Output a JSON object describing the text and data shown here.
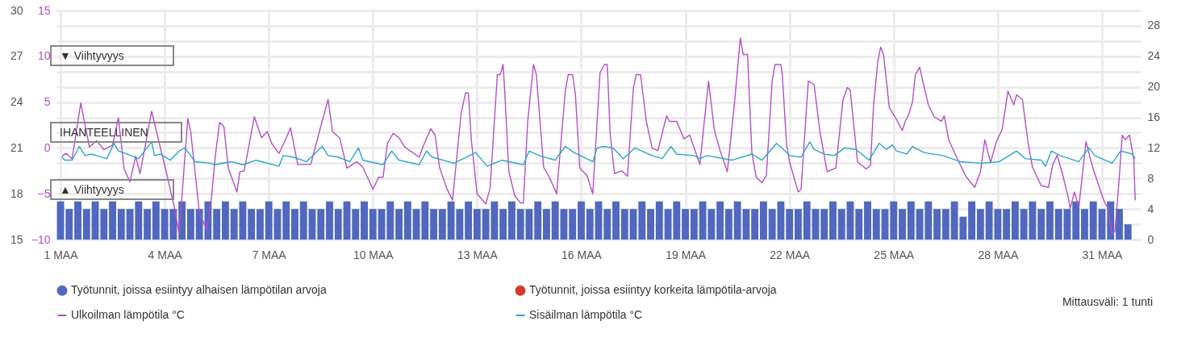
{
  "chart_data": {
    "type": "line",
    "x": [
      "--03-01T00:00",
      "--03-01T06:00",
      "--03-01T12:00",
      "--03-01T18:00",
      "--03-02T00:00",
      "--03-02T06:00",
      "--03-02T12:00",
      "--03-02T18:00",
      "--03-03T00:00",
      "--03-03T06:00",
      "--03-03T12:00",
      "--03-03T18:00",
      "--03-04T00:00",
      "--03-04T06:00",
      "--03-04T12:00",
      "--03-04T18:00",
      "--03-05T00:00",
      "--03-05T06:00",
      "--03-05T12:00",
      "--03-05T18:00",
      "--03-06T00:00",
      "--03-06T06:00",
      "--03-06T12:00",
      "--03-06T18:00",
      "--03-07T00:00",
      "--03-07T06:00",
      "--03-07T12:00",
      "--03-07T18:00",
      "--03-08T00:00",
      "--03-08T06:00",
      "--03-08T12:00",
      "--03-08T18:00",
      "--03-09T00:00",
      "--03-09T06:00",
      "--03-09T12:00",
      "--03-09T18:00",
      "--03-10T00:00",
      "--03-10T06:00",
      "--03-10T12:00",
      "--03-10T18:00",
      "--03-11T00:00",
      "--03-11T06:00",
      "--03-11T12:00",
      "--03-11T18:00",
      "--03-12T00:00",
      "--03-12T06:00",
      "--03-12T12:00",
      "--03-12T18:00",
      "--03-13T00:00",
      "--03-13T06:00",
      "--03-13T12:00",
      "--03-13T18:00",
      "--03-14T00:00",
      "--03-14T06:00",
      "--03-14T12:00",
      "--03-14T18:00",
      "--03-15T00:00",
      "--03-15T06:00",
      "--03-15T12:00",
      "--03-15T18:00",
      "--03-16T00:00",
      "--03-16T06:00",
      "--03-16T12:00",
      "--03-16T18:00",
      "--03-17T00:00",
      "--03-17T06:00",
      "--03-17T12:00",
      "--03-17T18:00",
      "--03-18T00:00",
      "--03-18T06:00",
      "--03-18T12:00",
      "--03-18T18:00",
      "--03-19T00:00",
      "--03-19T06:00",
      "--03-19T12:00",
      "--03-19T18:00",
      "--03-20T00:00",
      "--03-20T06:00",
      "--03-20T12:00",
      "--03-20T18:00",
      "--03-21T00:00",
      "--03-21T06:00",
      "--03-21T12:00",
      "--03-21T18:00",
      "--03-22T00:00",
      "--03-22T06:00",
      "--03-22T12:00",
      "--03-22T18:00",
      "--03-23T00:00",
      "--03-23T06:00",
      "--03-23T12:00",
      "--03-23T18:00",
      "--03-24T00:00",
      "--03-24T06:00",
      "--03-24T12:00",
      "--03-24T18:00",
      "--03-25T00:00",
      "--03-25T06:00",
      "--03-25T12:00",
      "--03-25T18:00",
      "--03-26T00:00",
      "--03-26T06:00",
      "--03-26T12:00",
      "--03-26T18:00",
      "--03-27T00:00",
      "--03-27T06:00",
      "--03-27T12:00",
      "--03-27T18:00",
      "--03-28T00:00",
      "--03-28T06:00",
      "--03-28T12:00",
      "--03-28T18:00",
      "--03-29T00:00",
      "--03-29T06:00",
      "--03-29T12:00",
      "--03-29T18:00",
      "--03-30T00:00",
      "--03-30T06:00",
      "--03-30T12:00",
      "--03-30T18:00",
      "--03-31T00:00",
      "--03-31T06:00",
      "--03-31T12:00",
      "--03-31T18:00"
    ],
    "series": [
      {
        "name": "Työtunnit, joissa esiintyy alhaisen lämpötilan arvoja",
        "type": "bar",
        "axis": "y3",
        "color": "#5068be",
        "values": [
          5,
          4,
          5,
          4,
          5,
          4,
          5,
          4,
          4,
          5,
          4,
          5,
          4,
          4,
          5,
          4,
          4,
          5,
          4,
          5,
          4,
          5,
          4,
          4,
          5,
          4,
          5,
          4,
          5,
          4,
          4,
          5,
          4,
          5,
          4,
          5,
          4,
          4,
          5,
          4,
          5,
          4,
          5,
          4,
          4,
          5,
          4,
          5,
          4,
          4,
          5,
          4,
          5,
          4,
          4,
          5,
          4,
          5,
          4,
          4,
          5,
          4,
          5,
          4,
          5,
          4,
          4,
          5,
          4,
          5,
          4,
          5,
          4,
          4,
          5,
          4,
          5,
          4,
          5,
          4,
          4,
          5,
          4,
          5,
          4,
          4,
          5,
          4,
          4,
          5,
          4,
          5,
          4,
          5,
          4,
          4,
          5,
          4,
          5,
          4,
          5,
          4,
          4,
          5,
          3,
          5,
          4,
          5,
          4,
          4,
          5,
          4,
          5,
          4,
          5,
          4,
          4,
          5,
          4,
          5,
          4,
          5,
          4,
          2
        ]
      },
      {
        "name": "Työtunnit, joissa esiintyy korkeita lämpötila-arvoja",
        "type": "bar",
        "axis": "y3",
        "color": "#d7392c",
        "values": [
          null,
          null,
          null,
          null,
          null,
          null,
          null,
          null,
          null,
          null,
          null,
          null,
          null,
          null,
          null,
          null,
          null,
          null,
          null,
          null,
          null,
          null,
          null,
          null,
          null,
          null,
          null,
          null,
          null,
          null,
          null,
          null,
          null,
          null,
          null,
          null,
          null,
          null,
          null,
          null,
          null,
          null,
          null,
          null,
          null,
          null,
          null,
          null,
          null,
          null,
          null,
          null,
          null,
          null,
          null,
          null,
          null,
          null,
          null,
          null,
          null,
          null,
          null,
          null,
          null,
          null,
          null,
          null,
          null,
          null,
          null,
          null,
          null,
          null,
          null,
          null,
          null,
          null,
          null,
          null,
          null,
          null,
          null,
          null,
          null,
          null,
          null,
          null,
          null,
          null,
          null,
          null,
          null,
          null,
          null,
          null,
          null,
          null,
          null,
          null,
          null,
          null,
          null,
          null,
          null,
          null,
          null,
          null,
          null,
          null,
          null,
          null,
          null,
          null,
          null,
          null,
          null,
          null,
          null,
          null,
          null,
          null,
          null,
          null
        ]
      },
      {
        "name": "Ulkoilman lämpötila °C",
        "axis": "y2",
        "color": "#b44fc8",
        "x": [
          "--03-01T01:00",
          "--03-01T04:00",
          "--03-01T08:00",
          "--03-01T14:00",
          "--03-01T20:00",
          "--03-02T01:00",
          "--03-02T06:00",
          "--03-02T12:00",
          "--03-02T16:00",
          "--03-02T20:00",
          "--03-03T00:00",
          "--03-03T04:00",
          "--03-03T07:00",
          "--03-03T15:00",
          "--03-03T17:00",
          "--03-04T02:00",
          "--03-04T07:00",
          "--03-04T10:00",
          "--03-04T16:00",
          "--03-04T18:00",
          "--03-05T00:00",
          "--03-05T05:00",
          "--03-05T08:00",
          "--03-05T11:00",
          "--03-05T14:00",
          "--03-05T17:00",
          "--03-05T20:00",
          "--03-06T02:00",
          "--03-06T04:00",
          "--03-06T07:00",
          "--03-06T14:00",
          "--03-06T19:00",
          "--03-06T23:00",
          "--03-07T02:00",
          "--03-07T07:00",
          "--03-07T11:00",
          "--03-07T15:00",
          "--03-07T20:00",
          "--03-08T05:00",
          "--03-08T11:00",
          "--03-08T17:00",
          "--03-08T20:00",
          "--03-09T01:00",
          "--03-09T06:00",
          "--03-09T13:00",
          "--03-09T17:00",
          "--03-10T00:00",
          "--03-10T04:00",
          "--03-10T07:00",
          "--03-10T10:00",
          "--03-10T14:00",
          "--03-10T18:00",
          "--03-10T22:00",
          "--03-11T08:00",
          "--03-11T11:00",
          "--03-11T16:00",
          "--03-11T19:00",
          "--03-11T22:00",
          "--03-12T03:00",
          "--03-12T07:00",
          "--03-12T13:00",
          "--03-12T16:00",
          "--03-12T18:00",
          "--03-12T20:00",
          "--03-13T00:00",
          "--03-13T06:00",
          "--03-13T09:00",
          "--03-13T14:00",
          "--03-13T16:00",
          "--03-13T18:00",
          "--03-13T19:00",
          "--03-13T22:00",
          "--03-14T02:00",
          "--03-14T06:00",
          "--03-14T08:00",
          "--03-14T11:00",
          "--03-14T15:00",
          "--03-14T17:00",
          "--03-14T22:00",
          "--03-15T02:00",
          "--03-15T07:00",
          "--03-15T13:00",
          "--03-15T15:00",
          "--03-15T18:00",
          "--03-15T20:00",
          "--03-15T23:00",
          "--03-16T04:00",
          "--03-16T08:00",
          "--03-16T13:00",
          "--03-16T16:00",
          "--03-16T18:00",
          "--03-16T20:00",
          "--03-16T23:00",
          "--03-17T04:00",
          "--03-17T08:00",
          "--03-17T12:00",
          "--03-17T14:00",
          "--03-17T17:00",
          "--03-17T21:00",
          "--03-18T01:00",
          "--03-18T05:00",
          "--03-18T11:00",
          "--03-18T13:00",
          "--03-18T18:00",
          "--03-18T23:00",
          "--03-19T03:00",
          "--03-19T10:00",
          "--03-19T16:00",
          "--03-19T20:00",
          "--03-20T00:00",
          "--03-20T05:00",
          "--03-20T10:00",
          "--03-20T14:00",
          "--03-20T16:00",
          "--03-20T19:00",
          "--03-20T22:00",
          "--03-21T01:00",
          "--03-21T05:00",
          "--03-21T08:00",
          "--03-21T12:00",
          "--03-21T14:00",
          "--03-21T18:00",
          "--03-21T19:00",
          "--03-21T22:00",
          "--03-22T00:00",
          "--03-22T06:00",
          "--03-22T08:00",
          "--03-22T13:00",
          "--03-22T17:00",
          "--03-22T21:00",
          "--03-23T02:00",
          "--03-23T08:00",
          "--03-23T13:00",
          "--03-23T16:00",
          "--03-23T18:00",
          "--03-23T23:00",
          "--03-24T05:00",
          "--03-24T08:00",
          "--03-24T10:00",
          "--03-24T13:00",
          "--03-24T15:00",
          "--03-24T17:00",
          "--03-24T21:00",
          "--03-25T02:00",
          "--03-25T06:00",
          "--03-25T08:00",
          "--03-25T10:00",
          "--03-25T13:00",
          "--03-25T15:00",
          "--03-25T18:00",
          "--03-25T21:00",
          "--03-26T00:00",
          "--03-26T04:00",
          "--03-26T09:00",
          "--03-26T11:00",
          "--03-26T14:00",
          "--03-26T21:00",
          "--03-27T02:00",
          "--03-27T08:00",
          "--03-27T12:00",
          "--03-27T15:00",
          "--03-27T19:00",
          "--03-27T23:00",
          "--03-28T03:00",
          "--03-28T07:00",
          "--03-28T11:00",
          "--03-28T13:00",
          "--03-28T17:00",
          "--03-28T21:00",
          "--03-29T00:00",
          "--03-29T06:00",
          "--03-29T11:00",
          "--03-29T14:00",
          "--03-29T17:00",
          "--03-29T21:00",
          "--03-30T01:00",
          "--03-30T02:00",
          "--03-30T05:00",
          "--03-30T08:00",
          "--03-30T13:00",
          "--03-30T16:00",
          "--03-30T18:00",
          "--03-30T23:00",
          "--03-31T02:00",
          "--03-31T04:00",
          "--03-31T07:00",
          "--03-31T09:00",
          "--03-31T12:00",
          "--03-31T14:00",
          "--03-31T16:00",
          "--03-31T19:00",
          "--03-31T22:00",
          "--03-31T23:00"
        ],
        "values": [
          -0.9,
          -0.6,
          -1.2,
          4.9,
          0.1,
          0.8,
          -0.2,
          0.3,
          3.3,
          -2.3,
          -3.7,
          -0.9,
          -2.8,
          4.0,
          2.7,
          -3.2,
          -6.7,
          -9.4,
          3.2,
          1.8,
          -7.0,
          -8.9,
          -6.1,
          -0.9,
          2.8,
          2.3,
          -2.2,
          -4.8,
          -2.6,
          -2.5,
          3.4,
          1.1,
          1.8,
          0.5,
          -0.6,
          0.7,
          2.2,
          -1.8,
          -1.8,
          1.8,
          5.3,
          1.8,
          1.1,
          -2.2,
          -1.5,
          -2.1,
          -4.5,
          -3.2,
          -3.2,
          0.5,
          1.6,
          1.1,
          0.1,
          -1.0,
          0.3,
          2.1,
          1.4,
          -2.1,
          -4.4,
          -5.7,
          3.8,
          6.0,
          6.0,
          0.9,
          -5.0,
          -6.1,
          -4.4,
          8.0,
          8.0,
          9.1,
          6.5,
          -2.6,
          -5.2,
          -6.0,
          -6.0,
          2.9,
          9.1,
          8.0,
          -2.1,
          -3.2,
          -5.0,
          6.2,
          8.0,
          8.0,
          5.8,
          -2.2,
          -3.0,
          -5.0,
          8.2,
          9.1,
          9.1,
          1.6,
          -2.8,
          -2.5,
          -3.1,
          6.5,
          8.0,
          8.0,
          2.9,
          0.0,
          -0.3,
          3.5,
          2.9,
          2.9,
          1.0,
          1.4,
          -1.8,
          7.3,
          2.0,
          -0.3,
          -2.6,
          5.0,
          12.0,
          10.2,
          10.2,
          -0.6,
          -3.2,
          -3.8,
          -3.0,
          7.3,
          9.1,
          9.1,
          8.0,
          0.3,
          -1.5,
          -4.8,
          -4.5,
          7.3,
          6.9,
          1.8,
          -2.6,
          -2.2,
          5.3,
          6.6,
          6.3,
          -1.5,
          -2.3,
          -1.9,
          4.4,
          9.4,
          11.0,
          10.2,
          4.4,
          3.1,
          1.9,
          2.9,
          3.5,
          5.0,
          8.0,
          8.8,
          6.7,
          4.7,
          3.4,
          2.9,
          3.5,
          0.9,
          -1.5,
          -3.1,
          -4.3,
          -2.6,
          0.9,
          -1.6,
          0.7,
          2.0,
          6.2,
          4.7,
          5.8,
          5.3,
          0.5,
          -2.1,
          -4.1,
          -4.3,
          -1.8,
          -0.8,
          -3.0,
          -5.6,
          -6.6,
          -4.8,
          -6.5,
          0.7,
          -1.2,
          -2.3,
          -4.7,
          -6.0,
          -6.5,
          -9.4,
          -9.1,
          -3.2,
          1.4,
          0.9,
          1.4,
          -1.2,
          -5.7
        ]
      },
      {
        "name": "Sisäilman lämpötila °C",
        "color": "#2ba6cb",
        "x": [
          "--03-01T01:00",
          "--03-01T03:00",
          "--03-01T08:00",
          "--03-01T13:00",
          "--03-01T17:00",
          "--03-01T21:00",
          "--03-02T01:00",
          "--03-02T08:00",
          "--03-02T13:00",
          "--03-02T16:00",
          "--03-02T22:00",
          "--03-03T06:00",
          "--03-03T15:00",
          "--03-03T17:00",
          "--03-03T21:00",
          "--03-04T04:00",
          "--03-04T10:00",
          "--03-04T14:00",
          "--03-04T21:00",
          "--03-05T08:00",
          "--03-05T10:00",
          "--03-05T22:00",
          "--03-06T06:00",
          "--03-06T15:00",
          "--03-07T07:00",
          "--03-07T10:00",
          "--03-07T17:00",
          "--03-08T02:00",
          "--03-08T13:00",
          "--03-08T17:00",
          "--03-09T00:00",
          "--03-09T08:00",
          "--03-09T14:00",
          "--03-09T17:00",
          "--03-10T07:00",
          "--03-10T13:00",
          "--03-10T18:00",
          "--03-11T08:00",
          "--03-11T13:00",
          "--03-11T17:00",
          "--03-12T08:00",
          "--03-12T23:00",
          "--03-13T07:00",
          "--03-13T17:00",
          "--03-14T08:00",
          "--03-14T12:00",
          "--03-14T19:00",
          "--03-15T06:00",
          "--03-15T13:00",
          "--03-15T19:00",
          "--03-16T08:00",
          "--03-16T11:00",
          "--03-16T15:00",
          "--03-16T22:00",
          "--03-17T05:00",
          "--03-17T13:00",
          "--03-18T01:00",
          "--03-18T08:00",
          "--03-18T14:00",
          "--03-18T18:00",
          "--03-19T06:00",
          "--03-19T10:00",
          "--03-19T15:00",
          "--03-20T08:00",
          "--03-20T22:00",
          "--03-21T05:00",
          "--03-21T15:00",
          "--03-21T21:00",
          "--03-22T00:00",
          "--03-22T08:00",
          "--03-22T14:00",
          "--03-22T17:00",
          "--03-23T00:00",
          "--03-23T07:00",
          "--03-23T14:00",
          "--03-23T22:00",
          "--03-24T07:00",
          "--03-24T14:00",
          "--03-24T19:00",
          "--03-24T23:00",
          "--03-25T02:00",
          "--03-25T09:00",
          "--03-25T13:00",
          "--03-25T21:00",
          "--03-26T10:00",
          "--03-26T22:00",
          "--03-27T13:00",
          "--03-28T01:00",
          "--03-28T13:00",
          "--03-28T19:00",
          "--03-29T06:00",
          "--03-29T09:00",
          "--03-29T13:00",
          "--03-29T19:00",
          "--03-30T08:00",
          "--03-30T15:00",
          "--03-30T19:00",
          "--03-31T07:00",
          "--03-31T13:00",
          "--03-31T21:00",
          "--03-31T23:00"
        ],
        "values": [
          20.4,
          20.2,
          20.2,
          21.1,
          20.5,
          20.6,
          20.5,
          20.3,
          21.3,
          20.8,
          20.6,
          20.3,
          21.4,
          20.5,
          20.6,
          20.2,
          20.8,
          21.0,
          20.1,
          20.0,
          19.9,
          20.1,
          19.9,
          20.2,
          19.8,
          20.5,
          20.4,
          20.1,
          21.1,
          20.5,
          20.4,
          20.1,
          21.0,
          20.2,
          19.9,
          20.8,
          20.2,
          19.9,
          20.8,
          20.4,
          20.0,
          20.7,
          19.8,
          20.2,
          19.9,
          20.8,
          20.5,
          20.2,
          21.1,
          20.7,
          20.1,
          21.0,
          21.1,
          21.0,
          20.3,
          21.0,
          20.5,
          20.3,
          21.1,
          20.6,
          20.5,
          20.3,
          20.5,
          20.2,
          20.6,
          20.2,
          21.3,
          20.8,
          20.5,
          20.4,
          21.4,
          20.9,
          20.6,
          20.5,
          21.0,
          20.9,
          20.2,
          21.3,
          20.9,
          21.2,
          20.8,
          20.6,
          21.1,
          20.7,
          20.5,
          20.1,
          20.0,
          20.1,
          20.8,
          20.3,
          20.2,
          19.8,
          20.8,
          20.5,
          20.1,
          21.0,
          20.5,
          20.0,
          20.8,
          20.6,
          20.3
        ]
      }
    ],
    "xlim": [
      "--03-01",
      "--04-01"
    ],
    "xticks": [
      {
        "value": "--03-01",
        "label": "1 MAA"
      },
      {
        "value": "--03-04",
        "label": "4 MAA"
      },
      {
        "value": "--03-07",
        "label": "7 MAA"
      },
      {
        "value": "--03-10",
        "label": "10 MAA"
      },
      {
        "value": "--03-13",
        "label": "13 MAA"
      },
      {
        "value": "--03-16",
        "label": "16 MAA"
      },
      {
        "value": "--03-19",
        "label": "19 MAA"
      },
      {
        "value": "--03-22",
        "label": "22 MAA"
      },
      {
        "value": "--03-25",
        "label": "25 MAA"
      },
      {
        "value": "--03-28",
        "label": "28 MAA"
      },
      {
        "value": "--03-31",
        "label": "31 MAA"
      }
    ],
    "ylim": [
      15,
      30
    ],
    "yticks": [
      15,
      {
        "value": 16,
        "label": null
      },
      {
        "value": 17,
        "label": null
      },
      18,
      {
        "value": 19,
        "label": null
      },
      {
        "value": 20,
        "label": null
      },
      21,
      {
        "value": 22,
        "label": null
      },
      {
        "value": 23,
        "label": null
      },
      24,
      {
        "value": 25,
        "label": null
      },
      {
        "value": 26,
        "label": null
      },
      27,
      {
        "value": 28,
        "label": null
      },
      {
        "value": 29,
        "label": null
      },
      30
    ],
    "y2lim": [
      -10,
      15
    ],
    "y2ticks": [
      -10,
      -5,
      0,
      5,
      10,
      15
    ],
    "y3lim": [
      0,
      30
    ],
    "y3ticks": [
      0,
      4,
      8,
      12,
      16,
      20,
      24,
      28
    ],
    "grid": true,
    "legend": "bottom",
    "annotations": [
      "▼ Viihtyvyys",
      "IHANTEELLINEN",
      "▲ Viihtyvyys",
      "Mittausväli: 1 tunti"
    ]
  }
}
